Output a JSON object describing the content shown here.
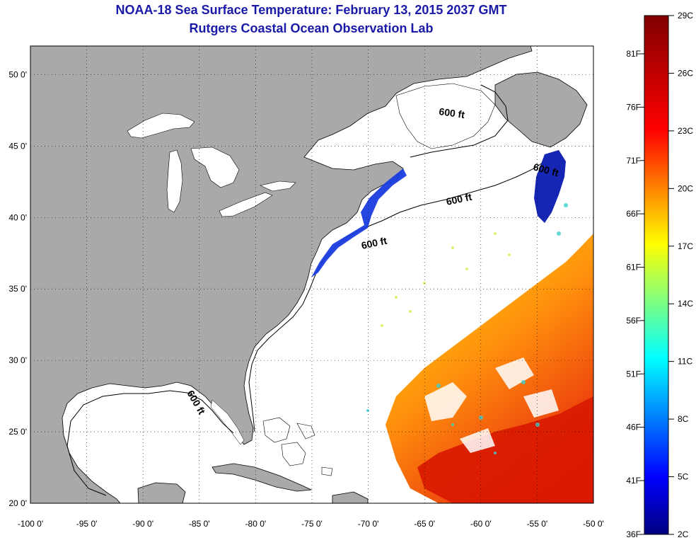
{
  "title": "NOAA-18 Sea Surface Temperature:  February 13, 2015 2037 GMT",
  "subtitle": "Rutgers Coastal Ocean Observation Lab",
  "map": {
    "lon_range": [
      -100,
      -50
    ],
    "lat_range": [
      20,
      52
    ],
    "lon_ticks": [
      "-100 0'",
      "-95 0'",
      "-90 0'",
      "-85 0'",
      "-80 0'",
      "-75 0'",
      "-70 0'",
      "-65 0'",
      "-60 0'",
      "-55 0'",
      "-50 0'"
    ],
    "lat_ticks": [
      "20 0'",
      "25 0'",
      "30 0'",
      "35 0'",
      "40 0'",
      "45 0'",
      "50 0'"
    ],
    "grid": "dotted",
    "land_color": "#a9a9a9",
    "water_color": "#ffffff",
    "contour_label": "600 ft",
    "contour_labels": [
      "600 ft",
      "600 ft",
      "600 ft",
      "600 ft",
      "600 ft"
    ]
  },
  "colorbar": {
    "celsius_labels": [
      "29C",
      "26C",
      "23C",
      "20C",
      "17C",
      "14C",
      "11C",
      "8C",
      "5C",
      "2C"
    ],
    "fahrenheit_labels": [
      "81F",
      "76F",
      "71F",
      "66F",
      "61F",
      "56F",
      "51F",
      "46F",
      "41F",
      "36F"
    ],
    "colors": [
      "#800000",
      "#ff0000",
      "#ff8000",
      "#ffff00",
      "#80ff80",
      "#00ffff",
      "#0080ff",
      "#0000ff",
      "#000080"
    ]
  }
}
